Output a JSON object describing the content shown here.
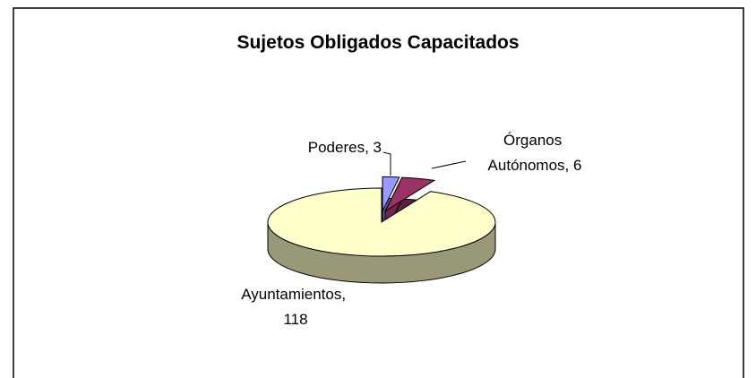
{
  "chart_data": {
    "type": "pie3d",
    "title": "Sujetos Obligados Capacitados",
    "categories": [
      "Poderes",
      "Órganos Autónomos",
      "Ayuntamientos"
    ],
    "values": [
      3,
      6,
      118
    ],
    "value_labels": [
      "Poderes, 3",
      "Órganos Autónomos, 6",
      "Ayuntamientos, 118"
    ],
    "colors": [
      "#9999ff",
      "#993366",
      "#ffffcc"
    ]
  }
}
